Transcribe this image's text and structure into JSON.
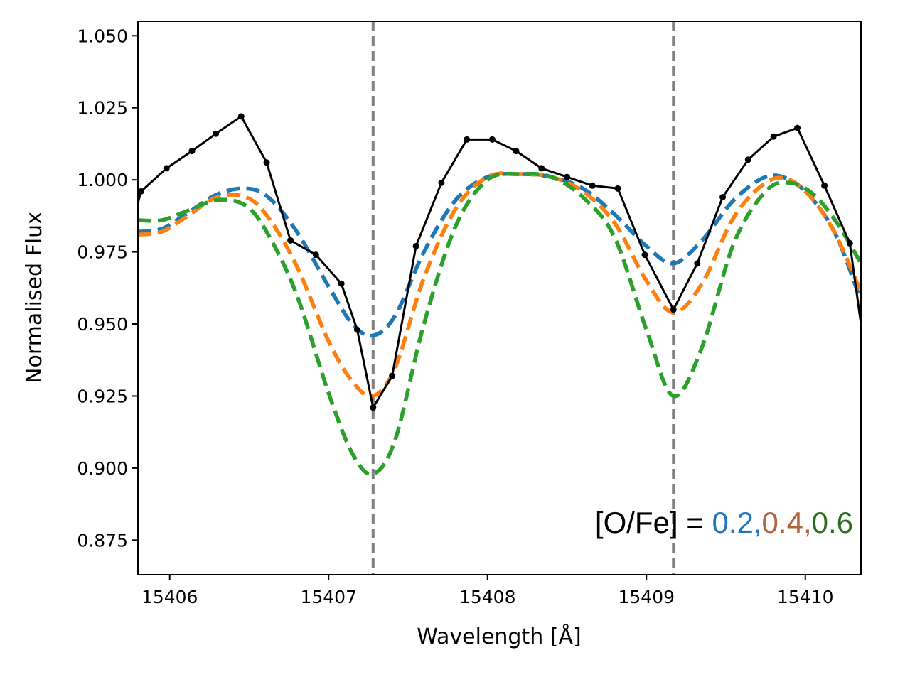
{
  "chart_data": {
    "type": "line",
    "title": "",
    "xlabel": "Wavelength [Å]",
    "ylabel": "Normalised Flux",
    "xlim": [
      15405.8,
      15410.35
    ],
    "ylim": [
      0.863,
      1.055
    ],
    "xticks": [
      15406,
      15407,
      15408,
      15409,
      15410
    ],
    "xtick_labels": [
      "15406",
      "15407",
      "15408",
      "15409",
      "15410"
    ],
    "yticks": [
      0.875,
      0.9,
      0.925,
      0.95,
      0.975,
      1.0,
      1.025,
      1.05
    ],
    "ytick_labels": [
      "0.875",
      "0.900",
      "0.925",
      "0.950",
      "0.975",
      "1.000",
      "1.025",
      "1.050"
    ],
    "grid": false,
    "vlines": [
      15407.28,
      15409.17
    ],
    "observed": {
      "name": "observed",
      "color": "#000000",
      "x": [
        15405.8,
        15405.82,
        15405.98,
        15406.14,
        15406.29,
        15406.45,
        15406.61,
        15406.76,
        15406.92,
        15407.08,
        15407.18,
        15407.28,
        15407.4,
        15407.55,
        15407.71,
        15407.87,
        15408.03,
        15408.18,
        15408.34,
        15408.5,
        15408.66,
        15408.82,
        15408.99,
        15409.17,
        15409.32,
        15409.48,
        15409.64,
        15409.8,
        15409.95,
        15410.12,
        15410.28,
        15410.35
      ],
      "y": [
        0.992,
        0.996,
        1.004,
        1.01,
        1.016,
        1.022,
        1.006,
        0.979,
        0.974,
        0.964,
        0.948,
        0.921,
        0.932,
        0.977,
        0.999,
        1.014,
        1.014,
        1.01,
        1.004,
        1.001,
        0.998,
        0.997,
        0.974,
        0.955,
        0.971,
        0.994,
        1.007,
        1.015,
        1.018,
        0.998,
        0.978,
        0.95
      ]
    },
    "series": [
      {
        "name": "[O/Fe] = 0.2",
        "color": "#1f77b4",
        "dash": "dashed",
        "x": [
          15405.8,
          15405.95,
          15406.1,
          15406.3,
          15406.48,
          15406.62,
          15406.8,
          15407.0,
          15407.15,
          15407.28,
          15407.42,
          15407.6,
          15407.8,
          15408.0,
          15408.2,
          15408.4,
          15408.6,
          15408.8,
          15409.0,
          15409.17,
          15409.35,
          15409.55,
          15409.75,
          15409.9,
          15410.05,
          15410.2,
          15410.35
        ],
        "y": [
          0.982,
          0.983,
          0.988,
          0.995,
          0.997,
          0.994,
          0.982,
          0.963,
          0.95,
          0.946,
          0.953,
          0.975,
          0.993,
          1.001,
          1.002,
          1.001,
          0.997,
          0.988,
          0.977,
          0.971,
          0.979,
          0.993,
          1.001,
          1.0,
          0.993,
          0.98,
          0.958
        ]
      },
      {
        "name": "[O/Fe] = 0.4",
        "color": "#ff7f0e",
        "dash": "dashed",
        "x": [
          15405.8,
          15405.95,
          15406.1,
          15406.3,
          15406.48,
          15406.62,
          15406.8,
          15407.0,
          15407.15,
          15407.28,
          15407.42,
          15407.6,
          15407.8,
          15408.0,
          15408.2,
          15408.4,
          15408.6,
          15408.8,
          15409.0,
          15409.17,
          15409.35,
          15409.55,
          15409.75,
          15409.9,
          15410.05,
          15410.2,
          15410.35
        ],
        "y": [
          0.981,
          0.982,
          0.987,
          0.994,
          0.994,
          0.987,
          0.97,
          0.944,
          0.93,
          0.925,
          0.935,
          0.966,
          0.99,
          1.001,
          1.002,
          1.001,
          0.996,
          0.985,
          0.965,
          0.954,
          0.964,
          0.987,
          0.999,
          1.0,
          0.993,
          0.98,
          0.961
        ]
      },
      {
        "name": "[O/Fe] = 0.6",
        "color": "#2ca02c",
        "dash": "dashed",
        "x": [
          15405.8,
          15405.95,
          15406.1,
          15406.3,
          15406.48,
          15406.62,
          15406.8,
          15407.0,
          15407.15,
          15407.28,
          15407.42,
          15407.6,
          15407.8,
          15408.0,
          15408.2,
          15408.4,
          15408.6,
          15408.8,
          15409.0,
          15409.17,
          15409.35,
          15409.55,
          15409.75,
          15409.9,
          15410.05,
          15410.2,
          15410.35
        ],
        "y": [
          0.986,
          0.986,
          0.989,
          0.993,
          0.991,
          0.981,
          0.96,
          0.926,
          0.905,
          0.898,
          0.91,
          0.95,
          0.984,
          1.0,
          1.002,
          1.001,
          0.994,
          0.98,
          0.948,
          0.925,
          0.942,
          0.978,
          0.996,
          0.999,
          0.995,
          0.985,
          0.971
        ]
      }
    ],
    "annotation": {
      "prefix": "[O/Fe] = ",
      "values": [
        "0.2",
        "0.4",
        "0.6"
      ],
      "separator": ",",
      "colors": [
        "#1f77b4",
        "#b0643c",
        "#2e6b1f"
      ],
      "location": "bottom-right"
    }
  }
}
